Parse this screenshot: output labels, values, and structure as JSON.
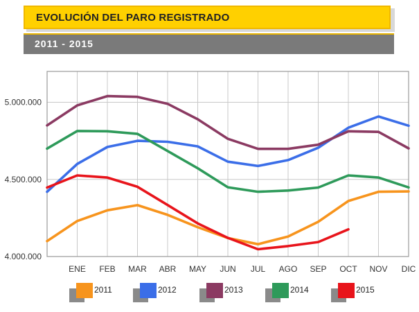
{
  "header": {
    "title": "EVOLUCIÓN DEL PARO REGISTRADO",
    "subtitle": "2011 - 2015"
  },
  "chart_data": {
    "type": "line",
    "title": "EVOLUCIÓN DEL PARO REGISTRADO",
    "subtitle": "2011 - 2015",
    "categories": [
      "",
      "ENE",
      "FEB",
      "MAR",
      "ABR",
      "MAY",
      "JUN",
      "JUL",
      "AGO",
      "SEP",
      "OCT",
      "NOV",
      "DIC"
    ],
    "ylim": [
      4000000,
      5200000
    ],
    "yticks": [
      4000000,
      4500000,
      5000000
    ],
    "ytick_labels": [
      "4.000.000",
      "4.500.000",
      "5.000.000"
    ],
    "grid": true,
    "legend_position": "bottom",
    "series": [
      {
        "name": "2011",
        "color": "#f7941d",
        "values": [
          4100000,
          4230000,
          4300000,
          4333000,
          4270000,
          4190000,
          4120000,
          4080000,
          4130000,
          4225000,
          4360000,
          4420000,
          4422000
        ]
      },
      {
        "name": "2012",
        "color": "#3b6ee8",
        "values": [
          4420000,
          4600000,
          4710000,
          4750000,
          4744000,
          4714000,
          4615000,
          4587000,
          4625000,
          4705000,
          4835000,
          4908000,
          4848000
        ]
      },
      {
        "name": "2013",
        "color": "#8b3a62",
        "values": [
          4850000,
          4980000,
          5040000,
          5035000,
          4990000,
          4890000,
          4763000,
          4698000,
          4698000,
          4725000,
          4812000,
          4808000,
          4701000
        ]
      },
      {
        "name": "2014",
        "color": "#2e9a5a",
        "values": [
          4700000,
          4814000,
          4812000,
          4795000,
          4684000,
          4572000,
          4449000,
          4420000,
          4428000,
          4447000,
          4526000,
          4512000,
          4448000
        ]
      },
      {
        "name": "2015",
        "color": "#e8141b",
        "values": [
          4447000,
          4526000,
          4512000,
          4452000,
          4334000,
          4215000,
          4121000,
          4047000,
          4068000,
          4094000,
          4176000,
          null,
          null
        ]
      }
    ]
  }
}
